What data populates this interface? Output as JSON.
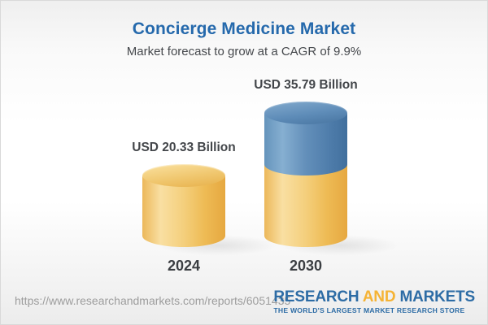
{
  "header": {
    "title": "Concierge Medicine Market",
    "subtitle": "Market forecast to grow at a CAGR of 9.9%"
  },
  "chart_data": {
    "type": "bar",
    "subtype": "3d-cylinder-stacked",
    "categories": [
      "2024",
      "2030"
    ],
    "values": [
      20.33,
      35.79
    ],
    "value_labels": [
      "USD 20.33 Billion",
      "USD 35.79 Billion"
    ],
    "unit": "USD Billion",
    "title": "Concierge Medicine Market",
    "subtitle": "Market forecast to grow at a CAGR of 9.9%",
    "cagr_percent": 9.9,
    "grid": false,
    "legend": false,
    "colors": {
      "base_gold": "#f2c66d",
      "growth_blue": "#5d8cb8"
    }
  },
  "footer": {
    "url": "https://www.researchandmarkets.com/reports/6051435",
    "logo": {
      "part1": "RESEARCH",
      "part2": "AND",
      "part3": "MARKETS",
      "tagline": "THE WORLD'S LARGEST MARKET RESEARCH STORE",
      "brand_blue": "#2d6ca5",
      "brand_gold": "#f5b335"
    }
  }
}
